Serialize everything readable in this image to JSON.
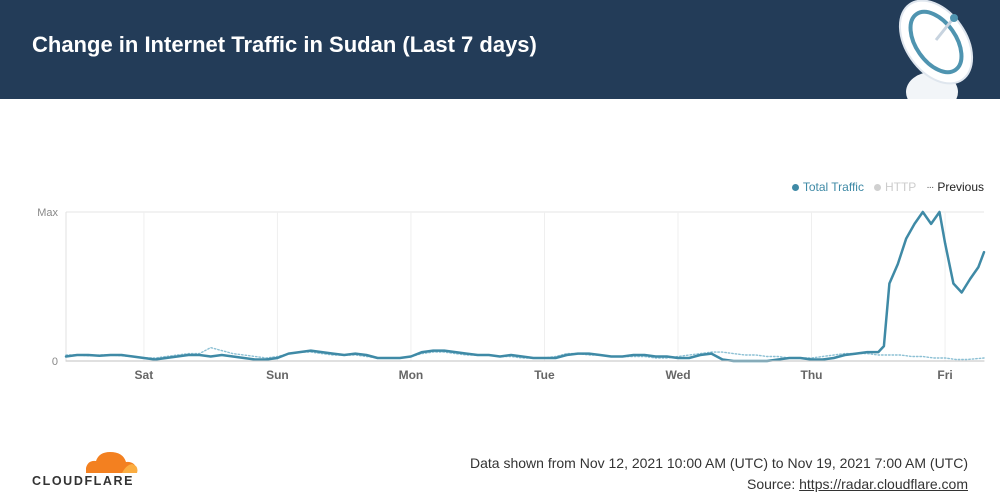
{
  "header": {
    "title": "Change in Internet Traffic in Sudan (Last 7 days)"
  },
  "legend": {
    "total_label": "Total Traffic",
    "http_label": "HTTP",
    "previous_label": "Previous"
  },
  "colors": {
    "header_bg": "#233c58",
    "total": "#3f8aa6",
    "http": "#d0d0d0",
    "previous": "#8cc0d4",
    "cloudflare_orange": "#f38020"
  },
  "footer": {
    "range_text": "Data shown from Nov 12, 2021 10:00 AM (UTC) to Nov 19, 2021 7:00 AM (UTC)",
    "source_prefix": "Source: ",
    "source_link": "https://radar.cloudflare.com"
  },
  "logo": {
    "text": "CLOUDFLARE"
  },
  "chart_data": {
    "type": "line",
    "title": "Change in Internet Traffic in Sudan (Last 7 days)",
    "xlabel": "",
    "ylabel": "",
    "y_tick_labels": [
      "0",
      "Max"
    ],
    "ylim": [
      0,
      1
    ],
    "x_range_hours": [
      0,
      165
    ],
    "grid": true,
    "legend_position": "top-right",
    "x_ticks": [
      {
        "label": "Sat",
        "hour": 14
      },
      {
        "label": "Sun",
        "hour": 38
      },
      {
        "label": "Mon",
        "hour": 62
      },
      {
        "label": "Tue",
        "hour": 86
      },
      {
        "label": "Wed",
        "hour": 110
      },
      {
        "label": "Thu",
        "hour": 134
      },
      {
        "label": "Fri",
        "hour": 158
      }
    ],
    "series": [
      {
        "name": "Total Traffic",
        "style": "solid",
        "x": [
          0,
          2,
          4,
          6,
          8,
          10,
          12,
          14,
          16,
          18,
          20,
          22,
          24,
          26,
          28,
          30,
          32,
          34,
          36,
          38,
          40,
          42,
          44,
          46,
          48,
          50,
          52,
          54,
          56,
          58,
          60,
          62,
          64,
          66,
          68,
          70,
          72,
          74,
          76,
          78,
          80,
          82,
          84,
          86,
          88,
          90,
          92,
          94,
          96,
          98,
          100,
          102,
          104,
          106,
          108,
          110,
          112,
          114,
          116,
          118,
          120,
          122,
          124,
          126,
          128,
          130,
          132,
          134,
          136,
          138,
          140,
          142,
          144,
          146,
          147,
          148,
          149.5,
          151,
          152.5,
          154,
          155.5,
          157,
          158,
          159.5,
          161,
          162.5,
          164,
          165
        ],
        "values": [
          0.03,
          0.04,
          0.04,
          0.035,
          0.04,
          0.04,
          0.03,
          0.02,
          0.01,
          0.02,
          0.03,
          0.04,
          0.04,
          0.03,
          0.04,
          0.03,
          0.02,
          0.01,
          0.01,
          0.02,
          0.05,
          0.06,
          0.07,
          0.06,
          0.05,
          0.04,
          0.05,
          0.04,
          0.02,
          0.02,
          0.02,
          0.03,
          0.06,
          0.07,
          0.07,
          0.06,
          0.05,
          0.04,
          0.04,
          0.03,
          0.04,
          0.03,
          0.02,
          0.02,
          0.02,
          0.04,
          0.05,
          0.05,
          0.04,
          0.03,
          0.03,
          0.04,
          0.04,
          0.03,
          0.03,
          0.02,
          0.02,
          0.04,
          0.05,
          0.01,
          0.0,
          0.0,
          0.0,
          0.0,
          0.01,
          0.02,
          0.02,
          0.01,
          0.01,
          0.02,
          0.04,
          0.05,
          0.06,
          0.06,
          0.1,
          0.52,
          0.65,
          0.82,
          0.92,
          1.0,
          0.92,
          1.0,
          0.79,
          0.52,
          0.46,
          0.55,
          0.63,
          0.73
        ]
      },
      {
        "name": "HTTP",
        "style": "solid-light",
        "x": [
          0,
          20,
          40,
          60,
          80,
          100,
          120,
          140,
          165
        ],
        "values": [
          0.0,
          0.0,
          0.0,
          0.0,
          0.0,
          0.0,
          0.0,
          0.0,
          0.0
        ]
      },
      {
        "name": "Previous",
        "style": "dotted",
        "x": [
          0,
          2,
          4,
          6,
          8,
          10,
          12,
          14,
          16,
          18,
          20,
          22,
          24,
          26,
          28,
          30,
          32,
          34,
          36,
          38,
          40,
          42,
          44,
          46,
          48,
          50,
          52,
          54,
          56,
          58,
          60,
          62,
          64,
          66,
          68,
          70,
          72,
          74,
          76,
          78,
          80,
          82,
          84,
          86,
          88,
          90,
          92,
          94,
          96,
          98,
          100,
          102,
          104,
          106,
          108,
          110,
          112,
          114,
          116,
          118,
          120,
          122,
          124,
          126,
          128,
          130,
          132,
          134,
          136,
          138,
          140,
          142,
          144,
          146,
          148,
          150,
          152,
          154,
          156,
          158,
          160,
          162,
          165
        ],
        "values": [
          0.04,
          0.04,
          0.035,
          0.04,
          0.04,
          0.035,
          0.03,
          0.02,
          0.02,
          0.03,
          0.04,
          0.05,
          0.05,
          0.09,
          0.07,
          0.05,
          0.04,
          0.03,
          0.02,
          0.03,
          0.05,
          0.06,
          0.06,
          0.05,
          0.04,
          0.04,
          0.04,
          0.03,
          0.02,
          0.02,
          0.02,
          0.03,
          0.05,
          0.06,
          0.06,
          0.05,
          0.04,
          0.04,
          0.04,
          0.03,
          0.03,
          0.02,
          0.02,
          0.02,
          0.03,
          0.05,
          0.05,
          0.04,
          0.04,
          0.03,
          0.03,
          0.03,
          0.03,
          0.02,
          0.02,
          0.03,
          0.04,
          0.05,
          0.06,
          0.06,
          0.05,
          0.04,
          0.04,
          0.03,
          0.03,
          0.02,
          0.02,
          0.02,
          0.03,
          0.04,
          0.05,
          0.05,
          0.05,
          0.04,
          0.04,
          0.04,
          0.03,
          0.03,
          0.02,
          0.02,
          0.01,
          0.01,
          0.02
        ]
      }
    ]
  }
}
